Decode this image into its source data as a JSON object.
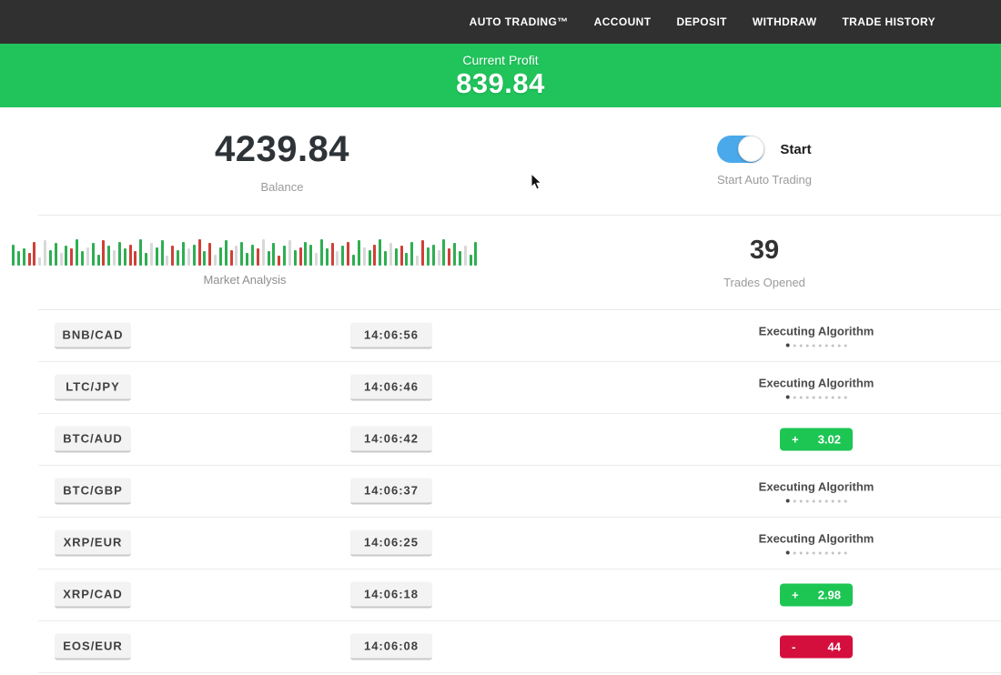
{
  "colors": {
    "nav_bg": "#303030",
    "banner": "#20c45b",
    "profit": "#1dc653",
    "loss": "#d40f3e",
    "toggle": "#4aa9ea",
    "bar_green": "#2fae52",
    "bar_red": "#cf4038",
    "bar_light": "#d8d8d8"
  },
  "nav": {
    "items": [
      {
        "label": "AUTO TRADING™"
      },
      {
        "label": "ACCOUNT"
      },
      {
        "label": "DEPOSIT"
      },
      {
        "label": "WITHDRAW"
      },
      {
        "label": "TRADE HISTORY"
      }
    ]
  },
  "banner": {
    "label": "Current Profit",
    "value": "839.84"
  },
  "stats": {
    "balance": {
      "value": "4239.84",
      "label": "Balance"
    },
    "auto_trading": {
      "toggle_state": "on",
      "toggle_label": "Start",
      "label": "Start Auto Trading"
    }
  },
  "market_analysis": {
    "label": "Market Analysis",
    "trades": {
      "value": "39",
      "label": "Trades Opened"
    },
    "chart": {
      "type": "bar",
      "bars": [
        [
          0.75,
          "g"
        ],
        [
          0.5,
          "g"
        ],
        [
          0.62,
          "g"
        ],
        [
          0.45,
          "r"
        ],
        [
          0.85,
          "r"
        ],
        [
          0.3,
          "l"
        ],
        [
          0.9,
          "l"
        ],
        [
          0.55,
          "g"
        ],
        [
          0.8,
          "g"
        ],
        [
          0.45,
          "l"
        ],
        [
          0.7,
          "g"
        ],
        [
          0.6,
          "r"
        ],
        [
          0.95,
          "g"
        ],
        [
          0.5,
          "g"
        ],
        [
          0.65,
          "l"
        ],
        [
          0.8,
          "g"
        ],
        [
          0.4,
          "g"
        ],
        [
          0.9,
          "r"
        ],
        [
          0.7,
          "g"
        ],
        [
          0.55,
          "l"
        ],
        [
          0.85,
          "g"
        ],
        [
          0.6,
          "g"
        ],
        [
          0.75,
          "r"
        ],
        [
          0.5,
          "r"
        ],
        [
          0.95,
          "g"
        ],
        [
          0.45,
          "g"
        ],
        [
          0.8,
          "l"
        ],
        [
          0.65,
          "g"
        ],
        [
          0.9,
          "g"
        ],
        [
          0.35,
          "l"
        ],
        [
          0.7,
          "r"
        ],
        [
          0.55,
          "g"
        ],
        [
          0.85,
          "g"
        ],
        [
          0.6,
          "l"
        ],
        [
          0.75,
          "g"
        ],
        [
          0.95,
          "r"
        ],
        [
          0.5,
          "g"
        ],
        [
          0.8,
          "r"
        ],
        [
          0.4,
          "l"
        ],
        [
          0.65,
          "g"
        ],
        [
          0.9,
          "g"
        ],
        [
          0.55,
          "r"
        ],
        [
          0.7,
          "l"
        ],
        [
          0.85,
          "g"
        ],
        [
          0.45,
          "g"
        ],
        [
          0.75,
          "g"
        ],
        [
          0.6,
          "r"
        ],
        [
          0.95,
          "l"
        ],
        [
          0.5,
          "g"
        ],
        [
          0.8,
          "g"
        ],
        [
          0.35,
          "r"
        ],
        [
          0.7,
          "g"
        ],
        [
          0.9,
          "l"
        ],
        [
          0.55,
          "g"
        ],
        [
          0.65,
          "r"
        ],
        [
          0.85,
          "g"
        ],
        [
          0.75,
          "g"
        ],
        [
          0.45,
          "l"
        ],
        [
          0.95,
          "g"
        ],
        [
          0.6,
          "g"
        ],
        [
          0.8,
          "r"
        ],
        [
          0.5,
          "l"
        ],
        [
          0.7,
          "g"
        ],
        [
          0.85,
          "r"
        ],
        [
          0.4,
          "g"
        ],
        [
          0.9,
          "g"
        ],
        [
          0.65,
          "l"
        ],
        [
          0.55,
          "g"
        ],
        [
          0.75,
          "r"
        ],
        [
          0.95,
          "g"
        ],
        [
          0.5,
          "g"
        ],
        [
          0.8,
          "l"
        ],
        [
          0.6,
          "g"
        ],
        [
          0.7,
          "r"
        ],
        [
          0.45,
          "g"
        ],
        [
          0.85,
          "g"
        ],
        [
          0.35,
          "l"
        ],
        [
          0.9,
          "r"
        ],
        [
          0.65,
          "g"
        ],
        [
          0.75,
          "g"
        ],
        [
          0.55,
          "l"
        ],
        [
          0.95,
          "g"
        ],
        [
          0.6,
          "r"
        ],
        [
          0.8,
          "g"
        ],
        [
          0.5,
          "g"
        ],
        [
          0.7,
          "l"
        ],
        [
          0.4,
          "g"
        ],
        [
          0.85,
          "g"
        ]
      ]
    }
  },
  "rows": [
    {
      "pair": "BNB/CAD",
      "time": "14:06:56",
      "status": {
        "type": "executing",
        "label": "Executing Algorithm",
        "dots": 10
      }
    },
    {
      "pair": "LTC/JPY",
      "time": "14:06:46",
      "status": {
        "type": "executing",
        "label": "Executing Algorithm",
        "dots": 10
      }
    },
    {
      "pair": "BTC/AUD",
      "time": "14:06:42",
      "status": {
        "type": "profit",
        "sign": "+",
        "value": "3.02"
      }
    },
    {
      "pair": "BTC/GBP",
      "time": "14:06:37",
      "status": {
        "type": "executing",
        "label": "Executing Algorithm",
        "dots": 10
      }
    },
    {
      "pair": "XRP/EUR",
      "time": "14:06:25",
      "status": {
        "type": "executing",
        "label": "Executing Algorithm",
        "dots": 10
      }
    },
    {
      "pair": "XRP/CAD",
      "time": "14:06:18",
      "status": {
        "type": "profit",
        "sign": "+",
        "value": "2.98"
      }
    },
    {
      "pair": "EOS/EUR",
      "time": "14:06:08",
      "status": {
        "type": "loss",
        "sign": "-",
        "value": "44"
      }
    }
  ]
}
